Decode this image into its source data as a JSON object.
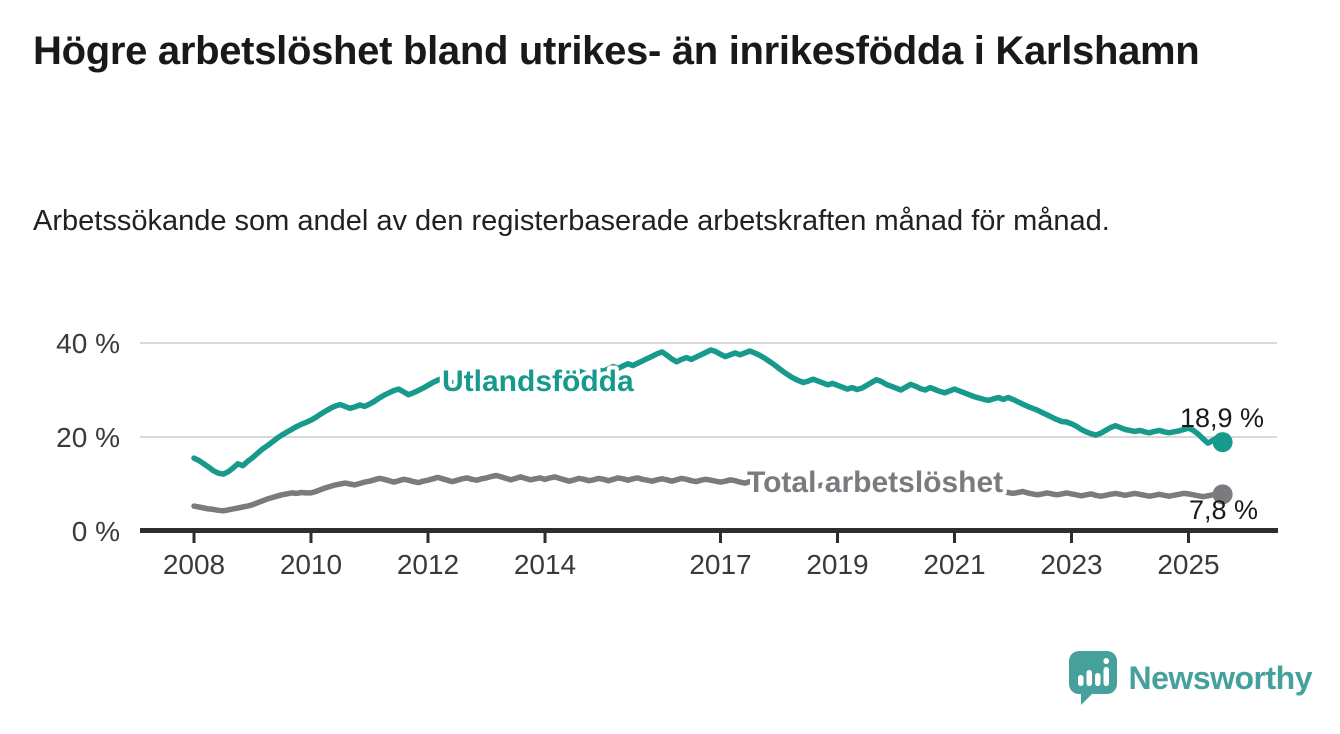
{
  "header": {
    "title": "Högre arbetslöshet bland utrikes- än inrikesfödda i Karlshamn",
    "subtitle": "Arbetssökande som andel av den registerbaserade arbetskraften månad för månad."
  },
  "footer": {
    "brand": "Newsworthy",
    "brand_color": "#46a09c"
  },
  "colors": {
    "accent_teal": "#179a8c",
    "neutral_gray": "#7b7b7f",
    "axis": "#2e2e2e",
    "gridline": "#d9d9d9",
    "tick_label": "#3a3a3a",
    "annotation_text": "#1a1a1a"
  },
  "chart_data": {
    "type": "line",
    "title": "Högre arbetslöshet bland utrikes- än inrikesfödda i Karlshamn",
    "subtitle": "Arbetssökande som andel av den registerbaserade arbetskraften månad för månad.",
    "x_unit": "month",
    "x_start_year": 2008,
    "x_end_year_fraction": 2025.583,
    "xlim": [
      2007.1,
      2026.6
    ],
    "ylim": [
      0,
      42
    ],
    "grid": "horizontal",
    "legend_position": "inline-labels",
    "x_ticks": [
      {
        "year": 2008,
        "label": "2008"
      },
      {
        "year": 2010,
        "label": "2010"
      },
      {
        "year": 2012,
        "label": "2012"
      },
      {
        "year": 2014,
        "label": "2014"
      },
      {
        "year": 2017,
        "label": "2017"
      },
      {
        "year": 2019,
        "label": "2019"
      },
      {
        "year": 2021,
        "label": "2021"
      },
      {
        "year": 2023,
        "label": "2023"
      },
      {
        "year": 2025,
        "label": "2025"
      }
    ],
    "y_ticks": [
      {
        "value": 40,
        "label": "40 %"
      },
      {
        "value": 20,
        "label": "20 %"
      },
      {
        "value": 0,
        "label": "0 %"
      }
    ],
    "series": [
      {
        "name": "Utlandsfödda",
        "color": "#179a8c",
        "end_value": 18.9,
        "end_value_label": "18,9 %",
        "values": [
          15.5,
          15.0,
          14.3,
          13.6,
          12.8,
          12.3,
          12.1,
          12.6,
          13.4,
          14.3,
          13.9,
          14.8,
          15.6,
          16.5,
          17.4,
          18.1,
          18.9,
          19.7,
          20.4,
          21.0,
          21.6,
          22.2,
          22.7,
          23.1,
          23.6,
          24.2,
          24.9,
          25.5,
          26.1,
          26.6,
          26.9,
          26.5,
          26.1,
          26.4,
          26.8,
          26.5,
          27.0,
          27.6,
          28.3,
          28.9,
          29.4,
          29.9,
          30.2,
          29.6,
          29.0,
          29.4,
          29.9,
          30.4,
          31.0,
          31.6,
          32.1,
          32.5,
          32.0,
          31.5,
          31.1,
          31.5,
          32.0,
          32.4,
          32.0,
          31.6,
          31.2,
          31.6,
          32.1,
          32.6,
          33.0,
          32.6,
          32.1,
          31.7,
          32.2,
          32.7,
          33.1,
          32.7,
          32.4,
          32.9,
          33.4,
          33.8,
          33.4,
          33.0,
          33.5,
          34.0,
          33.6,
          33.2,
          33.7,
          34.2,
          34.0,
          34.5,
          35.0,
          34.6,
          35.1,
          35.6,
          35.2,
          35.7,
          36.2,
          36.7,
          37.2,
          37.7,
          38.1,
          37.4,
          36.6,
          36.0,
          36.5,
          36.9,
          36.5,
          37.0,
          37.5,
          38.0,
          38.5,
          38.2,
          37.6,
          37.1,
          37.5,
          37.9,
          37.5,
          37.9,
          38.3,
          37.9,
          37.4,
          36.8,
          36.1,
          35.4,
          34.6,
          33.8,
          33.1,
          32.5,
          32.0,
          31.6,
          31.9,
          32.3,
          31.9,
          31.5,
          31.1,
          31.4,
          31.0,
          30.6,
          30.2,
          30.5,
          30.1,
          30.4,
          31.0,
          31.6,
          32.2,
          31.8,
          31.2,
          30.8,
          30.4,
          30.0,
          30.6,
          31.2,
          30.8,
          30.3,
          30.0,
          30.5,
          30.1,
          29.7,
          29.4,
          29.8,
          30.2,
          29.8,
          29.4,
          29.0,
          28.6,
          28.3,
          28.0,
          27.8,
          28.1,
          28.4,
          28.0,
          28.4,
          28.0,
          27.5,
          27.0,
          26.5,
          26.1,
          25.7,
          25.2,
          24.7,
          24.2,
          23.7,
          23.3,
          23.2,
          22.8,
          22.3,
          21.6,
          21.1,
          20.7,
          20.4,
          20.8,
          21.4,
          22.0,
          22.4,
          22.0,
          21.6,
          21.4,
          21.2,
          21.4,
          21.1,
          20.9,
          21.2,
          21.4,
          21.1,
          20.9,
          21.1,
          21.3,
          21.6,
          21.9,
          21.4,
          20.6,
          19.6,
          18.7,
          19.3,
          19.9,
          18.9
        ]
      },
      {
        "name": "Total arbetslöshet",
        "color": "#7b7b7f",
        "end_value": 7.8,
        "end_value_label": "7,8 %",
        "values": [
          5.3,
          5.1,
          4.9,
          4.7,
          4.6,
          4.4,
          4.3,
          4.5,
          4.7,
          4.9,
          5.1,
          5.3,
          5.6,
          6.0,
          6.4,
          6.8,
          7.1,
          7.4,
          7.7,
          7.9,
          8.1,
          8.0,
          8.2,
          8.1,
          8.1,
          8.4,
          8.8,
          9.2,
          9.5,
          9.8,
          10.0,
          10.2,
          10.0,
          9.8,
          10.1,
          10.4,
          10.6,
          10.9,
          11.2,
          11.0,
          10.7,
          10.4,
          10.7,
          11.0,
          10.8,
          10.5,
          10.3,
          10.6,
          10.8,
          11.1,
          11.4,
          11.1,
          10.8,
          10.5,
          10.8,
          11.1,
          11.3,
          11.0,
          10.8,
          11.1,
          11.3,
          11.6,
          11.8,
          11.5,
          11.2,
          10.9,
          11.2,
          11.5,
          11.2,
          10.9,
          11.1,
          11.3,
          11.0,
          11.3,
          11.5,
          11.2,
          10.9,
          10.6,
          10.9,
          11.2,
          11.0,
          10.7,
          10.9,
          11.2,
          11.0,
          10.7,
          11.0,
          11.3,
          11.1,
          10.8,
          11.1,
          11.3,
          11.0,
          10.8,
          10.6,
          10.9,
          11.1,
          10.9,
          10.6,
          10.9,
          11.2,
          11.0,
          10.7,
          10.5,
          10.8,
          11.0,
          10.8,
          10.6,
          10.4,
          10.6,
          10.9,
          10.7,
          10.4,
          10.2,
          10.5,
          10.7,
          10.4,
          10.1,
          9.9,
          10.2,
          10.0,
          9.8,
          9.5,
          9.8,
          10.0,
          9.7,
          9.5,
          9.3,
          9.6,
          9.8,
          9.5,
          9.3,
          9.1,
          9.3,
          9.5,
          9.2,
          9.0,
          8.8,
          9.1,
          9.3,
          9.0,
          8.8,
          9.0,
          9.2,
          9.4,
          9.7,
          10.0,
          10.2,
          9.9,
          9.7,
          9.9,
          10.1,
          9.8,
          9.6,
          9.4,
          9.2,
          9.0,
          8.8,
          8.6,
          8.8,
          9.0,
          8.7,
          8.5,
          8.3,
          8.5,
          8.7,
          8.4,
          8.2,
          8.0,
          8.2,
          8.4,
          8.1,
          7.9,
          7.7,
          7.9,
          8.1,
          7.9,
          7.7,
          7.9,
          8.1,
          7.9,
          7.7,
          7.5,
          7.7,
          7.9,
          7.6,
          7.4,
          7.6,
          7.8,
          8.0,
          7.8,
          7.6,
          7.8,
          8.0,
          7.8,
          7.6,
          7.4,
          7.6,
          7.8,
          7.6,
          7.4,
          7.6,
          7.8,
          8.0,
          7.9,
          7.7,
          7.5,
          7.3,
          7.5,
          7.7,
          7.9,
          7.8
        ]
      }
    ]
  }
}
